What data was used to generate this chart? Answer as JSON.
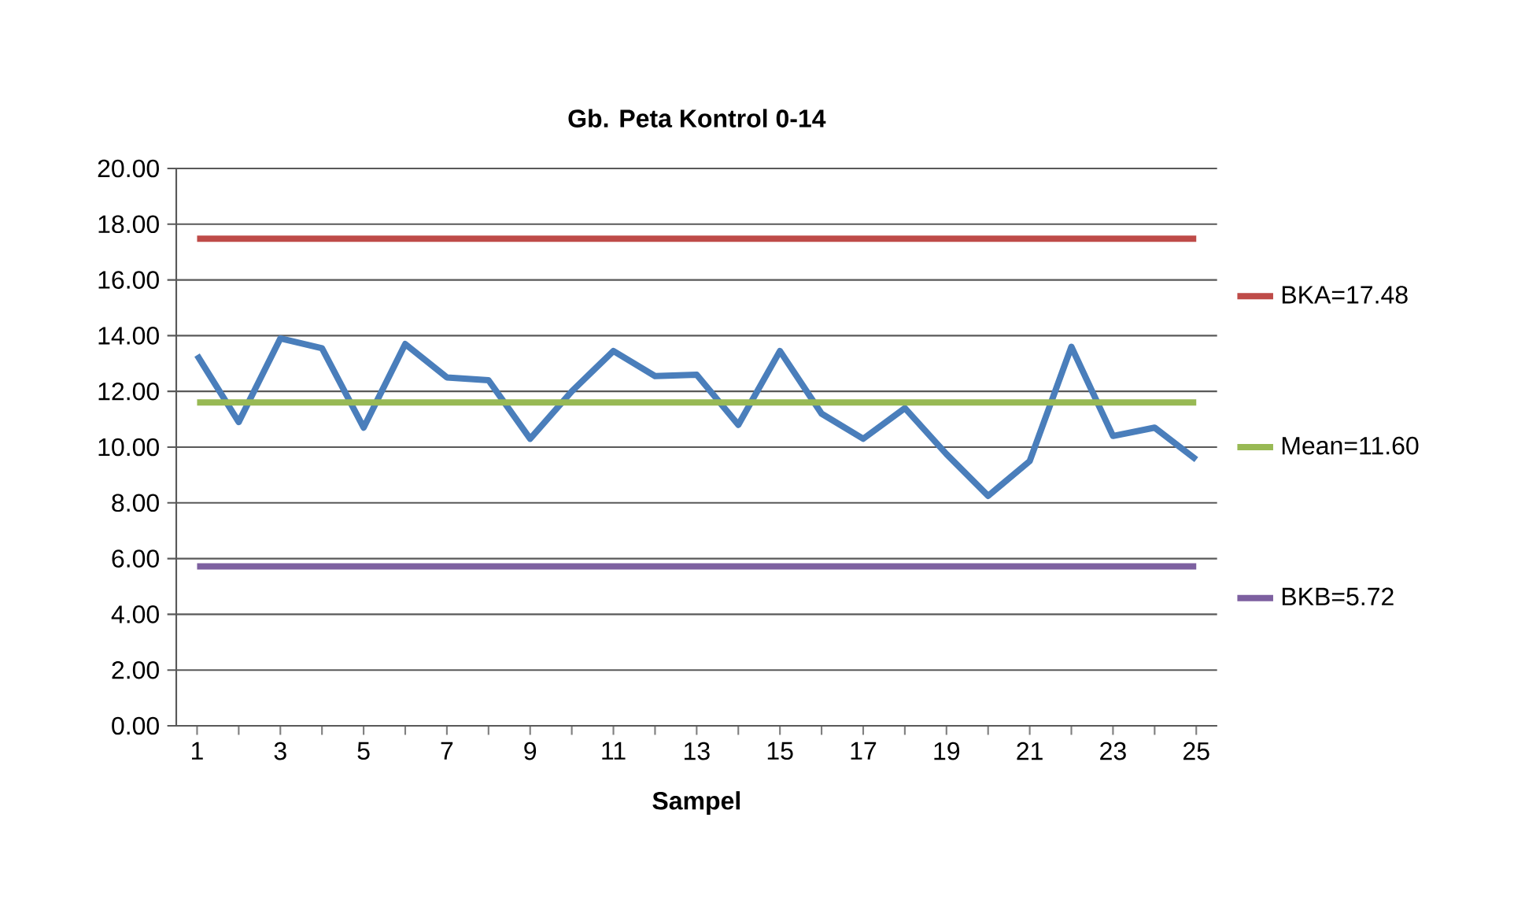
{
  "chart_data": {
    "type": "line",
    "title": "Gb. Peta Kontrol 0-14",
    "xlabel": "Sampel",
    "categories": [
      "1",
      null,
      "3",
      null,
      "5",
      null,
      "7",
      null,
      "9",
      null,
      "11",
      null,
      "13",
      null,
      "15",
      null,
      "17",
      null,
      "19",
      null,
      "21",
      null,
      "23",
      null,
      "25"
    ],
    "series": [
      {
        "color": "#4a7ebb",
        "values": [
          13.3,
          10.9,
          13.9,
          13.55,
          10.7,
          13.7,
          12.5,
          12.4,
          10.3,
          12.0,
          13.45,
          12.55,
          12.6,
          10.8,
          13.45,
          11.2,
          10.3,
          11.4,
          9.75,
          8.25,
          9.5,
          13.6,
          10.4,
          10.7,
          9.55
        ]
      },
      {
        "name": "BKA=17.48",
        "color": "#be4b48",
        "values": [
          17.48,
          17.48,
          17.48,
          17.48,
          17.48,
          17.48,
          17.48,
          17.48,
          17.48,
          17.48,
          17.48,
          17.48,
          17.48,
          17.48,
          17.48,
          17.48,
          17.48,
          17.48,
          17.48,
          17.48,
          17.48,
          17.48,
          17.48,
          17.48,
          17.48
        ]
      },
      {
        "name": "Mean=11.60",
        "color": "#98b954",
        "values": [
          11.6,
          11.6,
          11.6,
          11.6,
          11.6,
          11.6,
          11.6,
          11.6,
          11.6,
          11.6,
          11.6,
          11.6,
          11.6,
          11.6,
          11.6,
          11.6,
          11.6,
          11.6,
          11.6,
          11.6,
          11.6,
          11.6,
          11.6,
          11.6,
          11.6
        ]
      },
      {
        "name": "BKB=5.72",
        "color": "#7d60a0",
        "values": [
          5.72,
          5.72,
          5.72,
          5.72,
          5.72,
          5.72,
          5.72,
          5.72,
          5.72,
          5.72,
          5.72,
          5.72,
          5.72,
          5.72,
          5.72,
          5.72,
          5.72,
          5.72,
          5.72,
          5.72,
          5.72,
          5.72,
          5.72,
          5.72,
          5.72
        ]
      }
    ],
    "ylim": [
      0,
      20
    ],
    "yticks": [
      {
        "value": 0,
        "label": "0.00"
      },
      {
        "value": 2,
        "label": "2.00"
      },
      {
        "value": 4,
        "label": "4.00"
      },
      {
        "value": 6,
        "label": "6.00"
      },
      {
        "value": 8,
        "label": "8.00"
      },
      {
        "value": 10,
        "label": "10.00"
      },
      {
        "value": 12,
        "label": "12.00"
      },
      {
        "value": 14,
        "label": "14.00"
      },
      {
        "value": 16,
        "label": "16.00"
      },
      {
        "value": 18,
        "label": "18.00"
      },
      {
        "value": 20,
        "label": "20.00"
      }
    ],
    "grid": "y",
    "legend": "right"
  }
}
